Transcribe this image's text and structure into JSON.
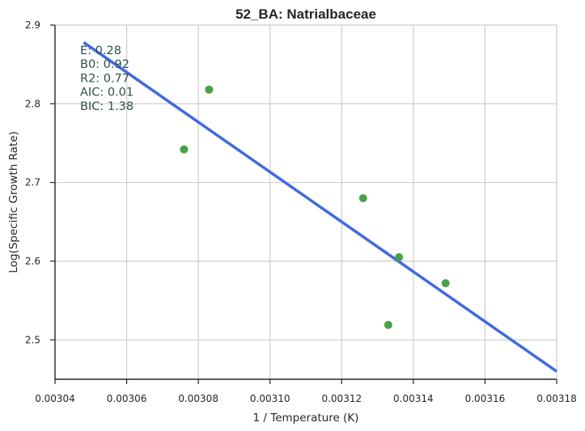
{
  "chart_data": {
    "type": "scatter",
    "title": "52_BA: Natrialbaceae",
    "xlabel": "1 / Temperature (K)",
    "ylabel": "Log(Specific Growth Rate)",
    "xlim": [
      0.00304,
      0.00318
    ],
    "ylim": [
      2.45,
      2.9
    ],
    "x_ticks": [
      0.00304,
      0.00306,
      0.00308,
      0.0031,
      0.00312,
      0.00314,
      0.00316,
      0.00318
    ],
    "x_tick_labels": [
      "0.00304",
      "0.00306",
      "0.00308",
      "0.00310",
      "0.00312",
      "0.00314",
      "0.00316",
      "0.00318"
    ],
    "y_ticks": [
      2.5,
      2.6,
      2.7,
      2.8,
      2.9
    ],
    "y_tick_labels": [
      "2.5",
      "2.6",
      "2.7",
      "2.8",
      "2.9"
    ],
    "grid": true,
    "points": [
      {
        "x": 0.003076,
        "y": 2.742
      },
      {
        "x": 0.003083,
        "y": 2.818
      },
      {
        "x": 0.003126,
        "y": 2.68
      },
      {
        "x": 0.003136,
        "y": 2.605
      },
      {
        "x": 0.003133,
        "y": 2.519
      },
      {
        "x": 0.003149,
        "y": 2.572
      }
    ],
    "fit_line": {
      "x": [
        0.003048,
        0.00318
      ],
      "y": [
        2.878,
        2.46
      ]
    },
    "point_color": "#4aa04a",
    "line_color": "#4169e1",
    "annotations": [
      "E:  0.28",
      "B0:  0.92",
      "R2:  0.77",
      "AIC: 0.01",
      "BIC: 1.38"
    ]
  }
}
